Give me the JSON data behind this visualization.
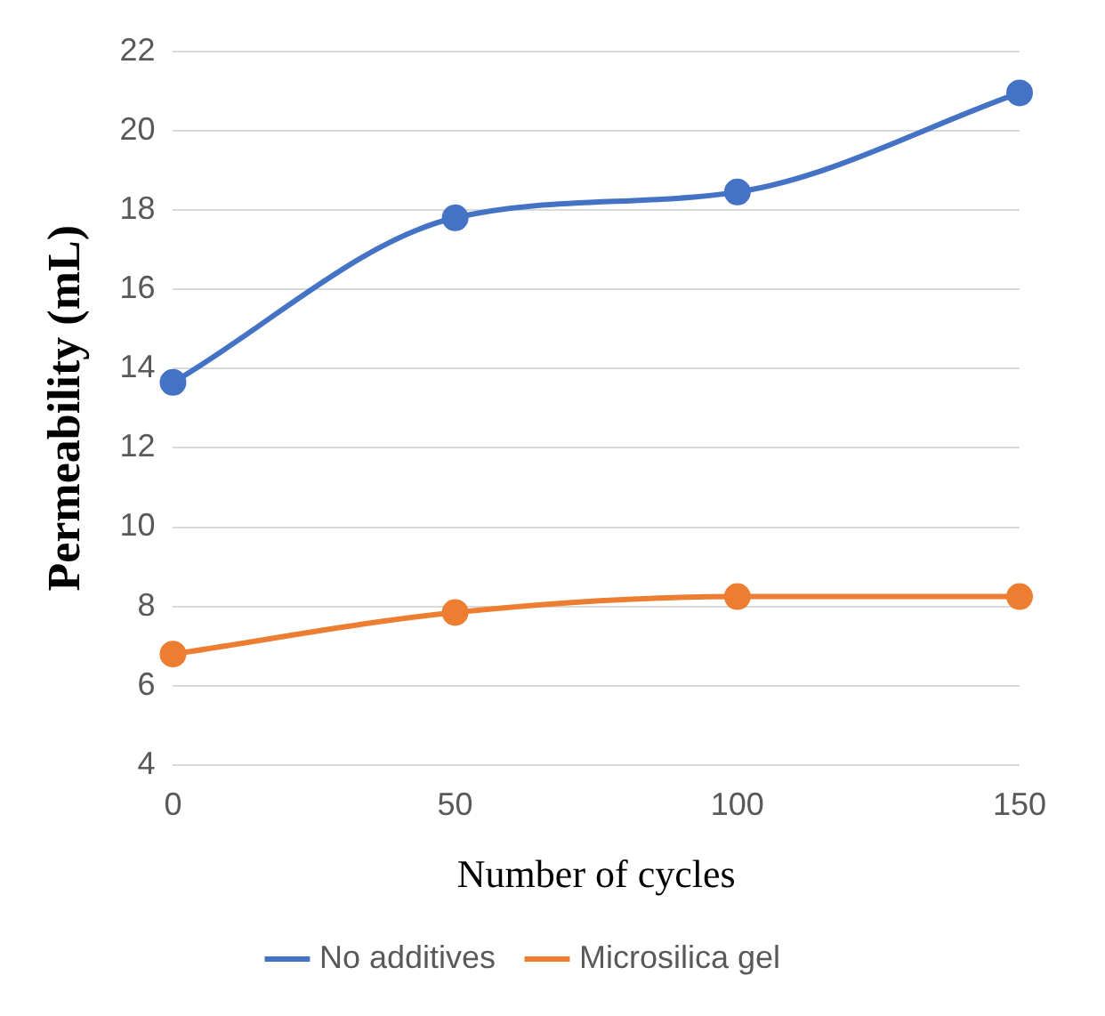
{
  "chart_data": {
    "type": "line",
    "xlabel": "Number of cycles",
    "ylabel": "Permeability (mL)",
    "categories": [
      "0",
      "50",
      "100",
      "150"
    ],
    "series": [
      {
        "name": "No additives",
        "color": "#4472c4",
        "values": [
          13.65,
          17.8,
          18.45,
          20.95
        ]
      },
      {
        "name": "Microsilica gel",
        "color": "#ed7d31",
        "values": [
          6.8,
          7.85,
          8.25,
          8.25
        ]
      }
    ],
    "ylim": [
      4,
      22
    ],
    "yticks": [
      4,
      6,
      8,
      10,
      12,
      14,
      16,
      18,
      20,
      22
    ],
    "grid": "y",
    "legend": "bottom",
    "marker": "circle",
    "line_style": "solid"
  }
}
